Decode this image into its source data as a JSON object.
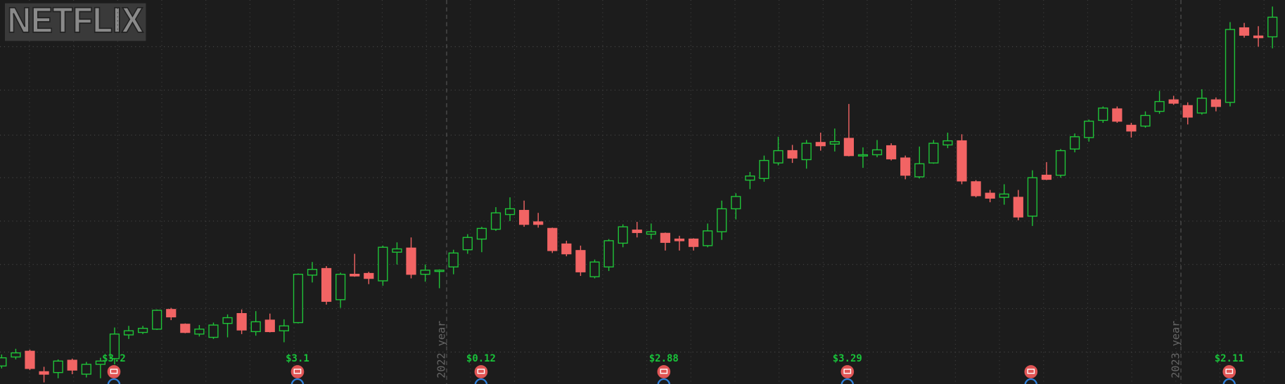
{
  "logo": "NETFLIX",
  "chart_data": {
    "type": "candlestick",
    "ylim": [
      0,
      469
    ],
    "yticks": [
      39,
      92,
      146,
      199,
      252,
      304,
      359,
      412
    ],
    "grid": true,
    "up_color": "#1fc338",
    "down_color": "#f26464",
    "open": [
      22,
      33,
      40,
      15,
      14,
      29,
      12,
      24,
      31,
      60,
      63,
      67,
      91,
      73,
      61,
      57,
      74,
      86,
      64,
      78,
      65,
      75,
      133,
      141,
      103,
      134,
      135,
      126,
      161,
      166,
      134,
      138,
      143,
      164,
      177,
      189,
      207,
      212,
      198,
      190,
      171,
      163,
      131,
      143,
      172,
      188,
      183,
      184,
      177,
      177,
      169,
      186,
      214,
      249,
      251,
      270,
      285,
      274,
      295,
      293,
      300,
      279,
      280,
      291,
      276,
      253,
      270,
      292,
      297,
      247,
      233,
      228,
      228,
      205,
      255,
      255,
      287,
      301,
      322,
      336,
      316,
      315,
      333,
      347,
      340,
      331,
      347,
      344,
      435,
      425,
      424
    ],
    "high": [
      36,
      43,
      42,
      21,
      30,
      31,
      27,
      32,
      69,
      71,
      71,
      91,
      93,
      74,
      72,
      75,
      85,
      91,
      89,
      86,
      79,
      135,
      149,
      144,
      136,
      159,
      137,
      169,
      173,
      179,
      146,
      140,
      164,
      183,
      192,
      216,
      228,
      224,
      209,
      191,
      175,
      169,
      152,
      177,
      195,
      198,
      196,
      185,
      181,
      178,
      196,
      224,
      233,
      259,
      279,
      302,
      292,
      298,
      307,
      312,
      342,
      289,
      298,
      294,
      279,
      290,
      298,
      307,
      305,
      249,
      237,
      244,
      237,
      261,
      271,
      287,
      306,
      323,
      339,
      339,
      319,
      333,
      358,
      352,
      344,
      360,
      350,
      442,
      441,
      437,
      461
    ],
    "low": [
      19,
      30,
      17,
      2,
      7,
      12,
      8,
      7,
      24,
      55,
      61,
      66,
      78,
      62,
      58,
      55,
      57,
      61,
      59,
      63,
      51,
      74,
      124,
      97,
      93,
      131,
      122,
      120,
      146,
      129,
      125,
      117,
      134,
      159,
      161,
      187,
      199,
      192,
      191,
      160,
      156,
      132,
      129,
      138,
      167,
      179,
      177,
      163,
      163,
      163,
      167,
      176,
      201,
      238,
      247,
      267,
      270,
      263,
      285,
      284,
      278,
      264,
      277,
      273,
      250,
      251,
      269,
      288,
      244,
      228,
      222,
      219,
      200,
      193,
      249,
      252,
      283,
      296,
      319,
      319,
      301,
      313,
      330,
      341,
      317,
      329,
      333,
      339,
      423,
      412,
      410
    ],
    "close": [
      32,
      38,
      19,
      12,
      28,
      17,
      24,
      28,
      61,
      65,
      68,
      90,
      82,
      63,
      67,
      72,
      81,
      66,
      76,
      64,
      71,
      134,
      140,
      101,
      134,
      132,
      129,
      167,
      165,
      134,
      139,
      139,
      160,
      179,
      190,
      209,
      214,
      195,
      195,
      163,
      159,
      137,
      149,
      175,
      192,
      185,
      186,
      173,
      175,
      168,
      187,
      214,
      229,
      254,
      273,
      285,
      276,
      294,
      291,
      296,
      279,
      280,
      286,
      275,
      255,
      269,
      294,
      297,
      248,
      230,
      227,
      232,
      204,
      252,
      250,
      285,
      302,
      321,
      337,
      321,
      309,
      328,
      345,
      343,
      326,
      349,
      339,
      433,
      426,
      423,
      448
    ],
    "events": [
      {
        "label": "$3.2"
      },
      {
        "label": "$3.1"
      },
      {
        "label": "$0.12"
      },
      {
        "label": "$2.88"
      },
      {
        "label": "$3.29"
      },
      {
        "label": "$2.11"
      }
    ],
    "year_markers": [
      {
        "label": "2022 year"
      },
      {
        "label": "2023 year"
      }
    ]
  }
}
